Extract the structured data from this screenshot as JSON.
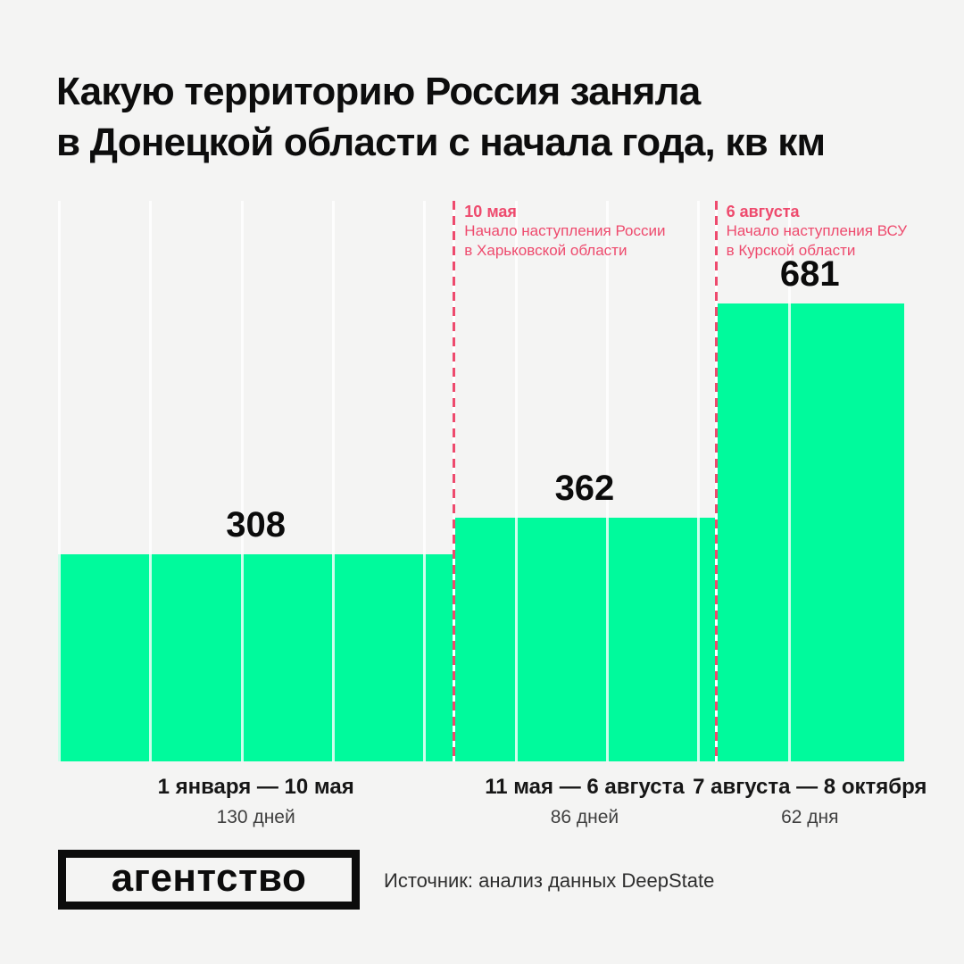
{
  "title": {
    "line1": "Какую территорию Россия заняла",
    "line2": "в Донецкой области с начала года, кв км"
  },
  "chart_data": {
    "type": "bar",
    "title": "Какую территорию Россия заняла в Донецкой области с начала года, кв км",
    "unit": "кв км",
    "categories": [
      "1 января — 10 мая",
      "11 мая — 6 августа",
      "7 августа — 8 октября"
    ],
    "durations": [
      "130 дней",
      "86 дней",
      "62 дня"
    ],
    "duration_days": [
      130,
      86,
      62
    ],
    "values": [
      308,
      362,
      681
    ],
    "ylim": [
      0,
      681
    ],
    "bar_width_rule": "proportional to duration_days",
    "gridlines": "vertical, one per 30 days",
    "legend": "none",
    "annotations": [
      {
        "date": "10 мая",
        "text_line1": "Начало наступления России",
        "text_line2": "в Харьковской области",
        "at_day": 130
      },
      {
        "date": "6 августа",
        "text_line1": "Начало наступления ВСУ",
        "text_line2": "в Курской области",
        "at_day": 216
      }
    ],
    "colors": {
      "bar": "#00fa9c",
      "event_line": "#ee4a6d",
      "background": "#f4f4f3",
      "label": "#0d0d0d",
      "sublabel": "#3f3f3f"
    }
  },
  "footer": {
    "logo_text": "агентство",
    "source": "Источник: анализ данных DeepState"
  }
}
